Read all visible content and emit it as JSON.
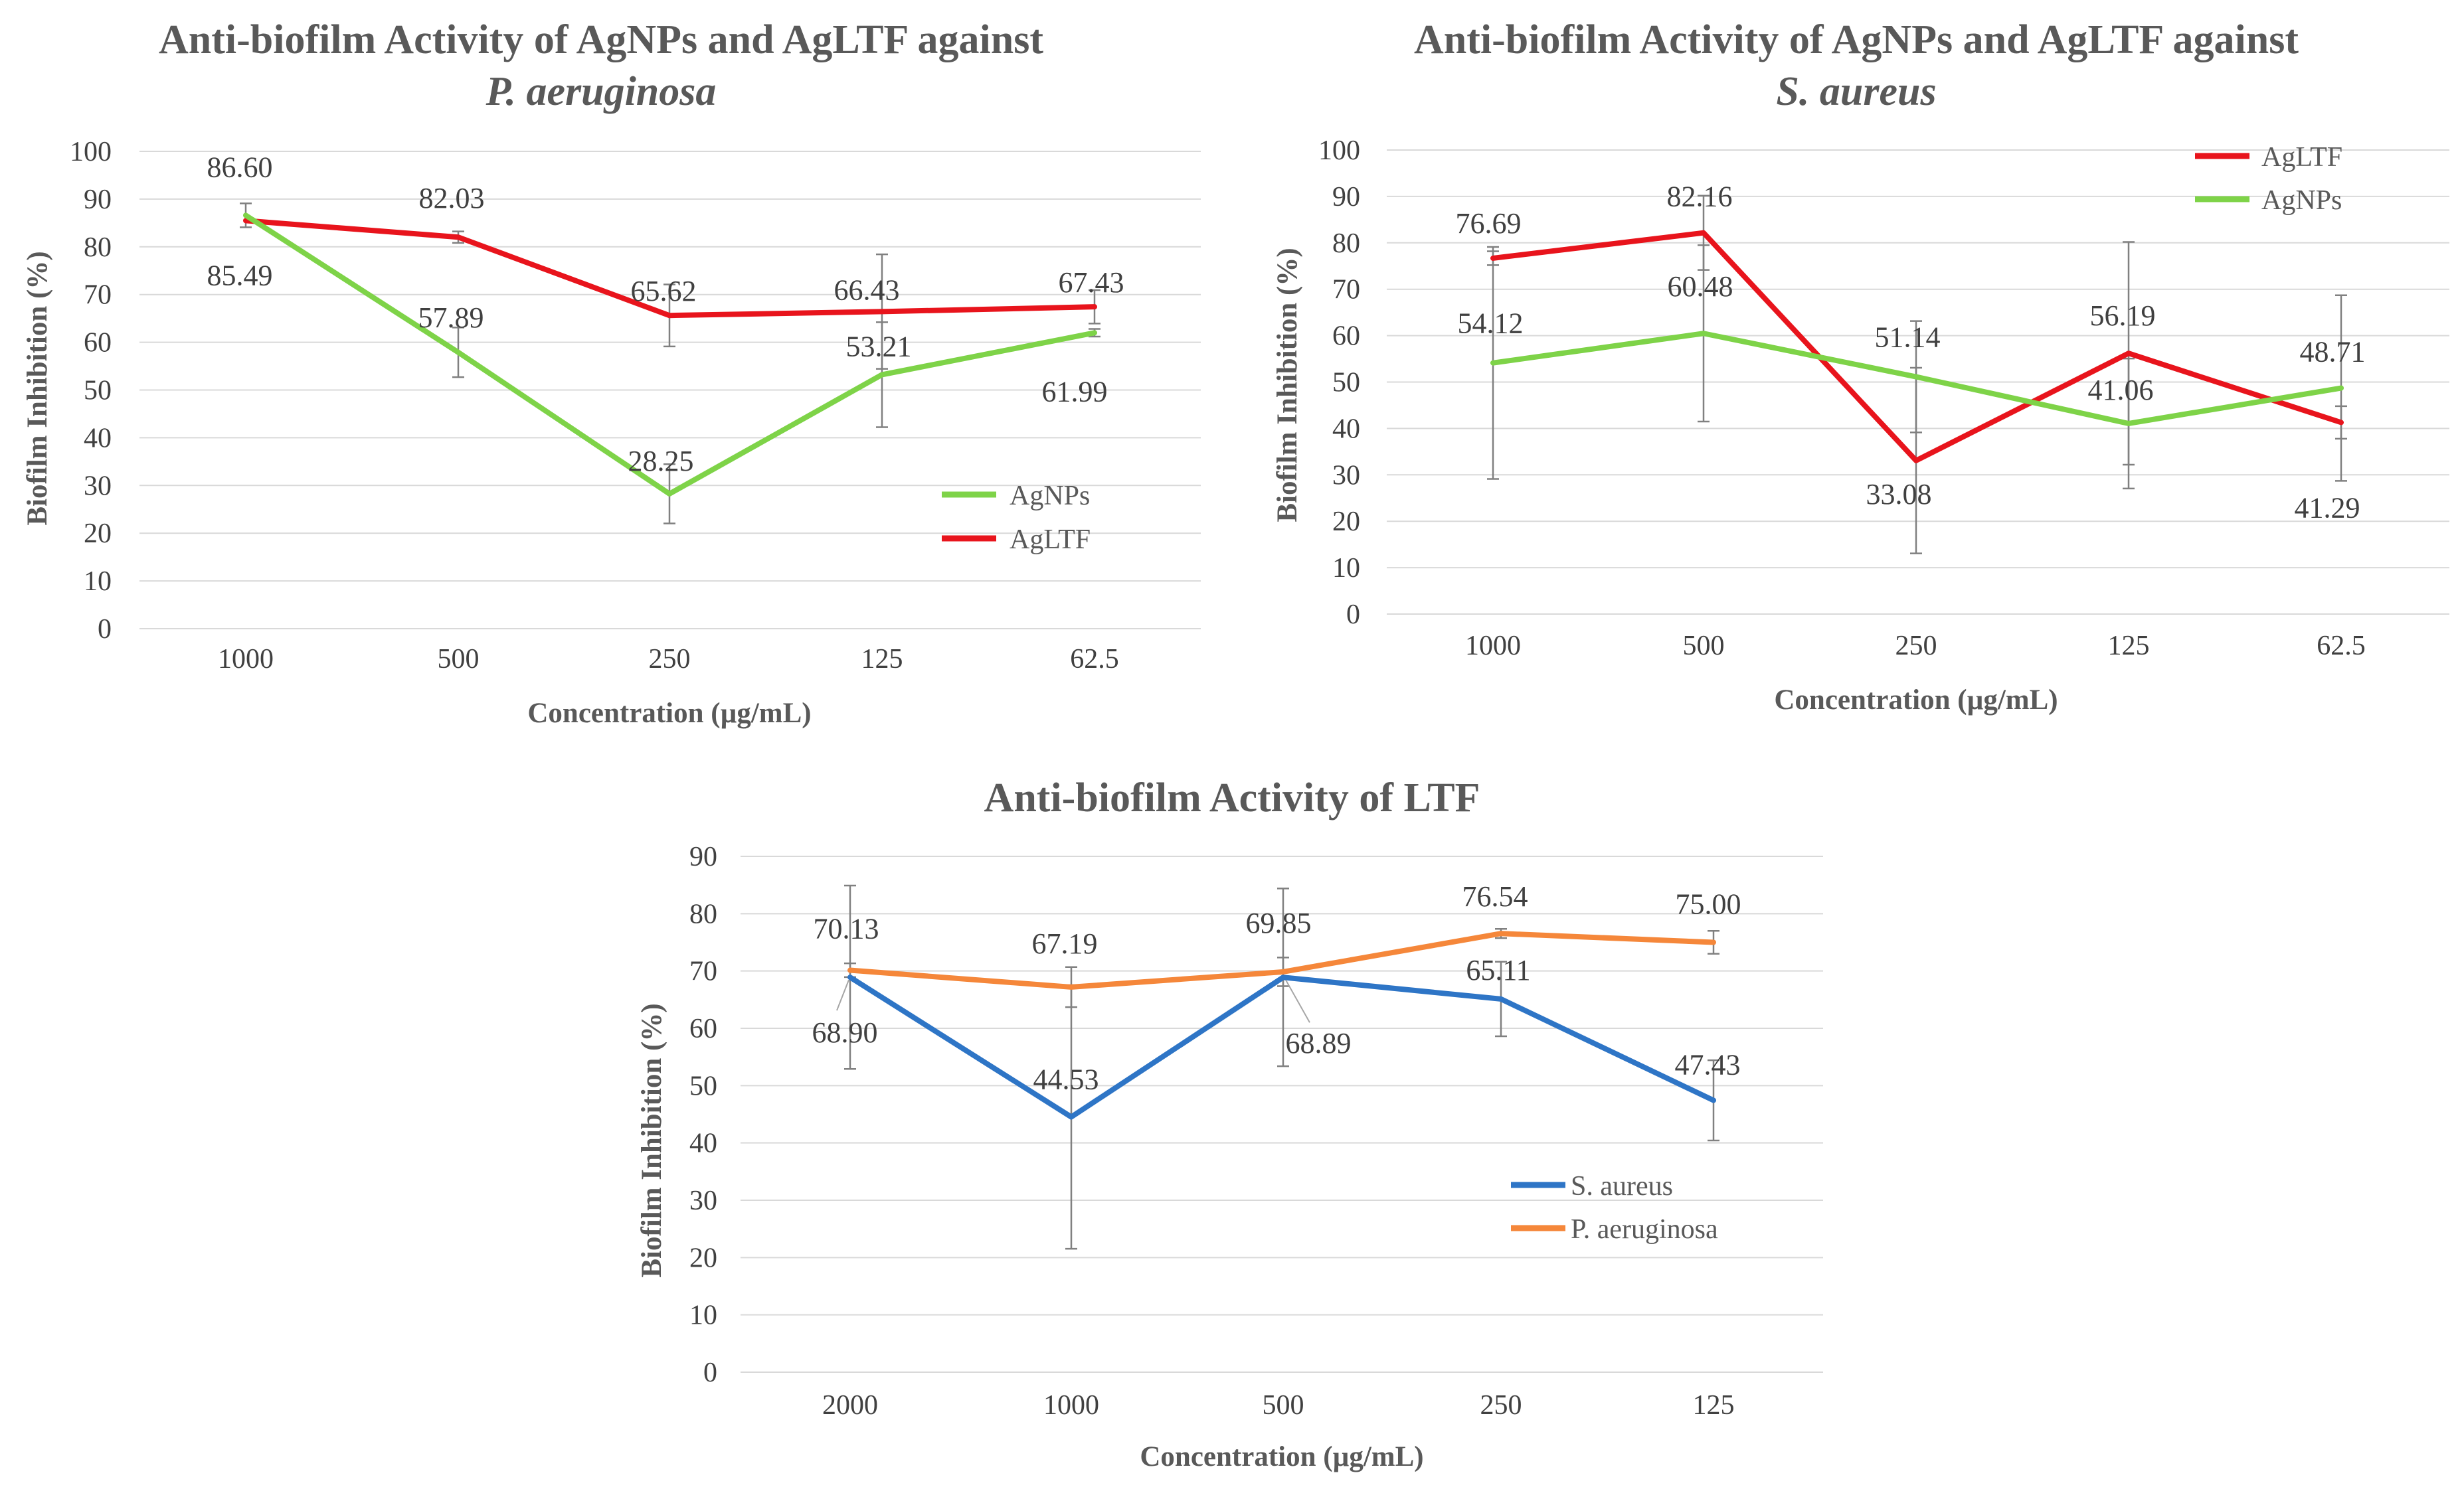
{
  "chart_data": [
    {
      "type": "line",
      "title": "Anti-biofilm Activity of AgNPs and AgLTF against",
      "title_organism": "P. aeruginosa",
      "xlabel": "Concentration (µg/mL)",
      "ylabel": "Biofilm Inhibition (%)",
      "categories": [
        "1000",
        "500",
        "250",
        "125",
        "62.5"
      ],
      "ylim": [
        0,
        100
      ],
      "yticks": [
        0,
        10,
        20,
        30,
        40,
        50,
        60,
        70,
        80,
        90,
        100
      ],
      "grid": true,
      "legend_position": "bottom-right",
      "legend": [
        "AgNPs",
        "AgLTF"
      ],
      "series": [
        {
          "name": "AgLTF",
          "color": "#e8141c",
          "values": [
            85.49,
            82.03,
            65.62,
            66.43,
            67.43
          ],
          "labels": [
            "85.49",
            "82.03",
            "65.62",
            "66.43",
            "67.43"
          ],
          "error": [
            0,
            1.2,
            6.5,
            12,
            3.5
          ]
        },
        {
          "name": "AgNPs",
          "color": "#7ed348",
          "values": [
            86.6,
            57.89,
            28.25,
            53.21,
            61.99
          ],
          "labels": [
            "86.60",
            "57.89",
            "28.25",
            "53.21",
            "61.99"
          ],
          "error": [
            2.5,
            5.2,
            6.2,
            11,
            0.8
          ]
        }
      ]
    },
    {
      "type": "line",
      "title": "Anti-biofilm Activity of AgNPs and AgLTF against",
      "title_organism": "S. aureus",
      "xlabel": "Concentration (µg/mL)",
      "ylabel": "Biofilm Inhibition (%)",
      "categories": [
        "1000",
        "500",
        "250",
        "125",
        "62.5"
      ],
      "ylim": [
        0,
        100
      ],
      "yticks": [
        0,
        10,
        20,
        30,
        40,
        50,
        60,
        70,
        80,
        90,
        100
      ],
      "grid": true,
      "legend_position": "top-right",
      "legend": [
        "AgLTF",
        "AgNPs"
      ],
      "series": [
        {
          "name": "AgLTF",
          "color": "#e8141c",
          "values": [
            76.69,
            82.16,
            33.08,
            56.19,
            41.29
          ],
          "labels": [
            "76.69",
            "82.16",
            "33.08",
            "56.19",
            "41.29"
          ],
          "error": [
            1.5,
            8,
            20,
            24,
            3.5
          ]
        },
        {
          "name": "AgNPs",
          "color": "#7ed348",
          "values": [
            54.12,
            60.48,
            51.14,
            41.06,
            48.71
          ],
          "labels": [
            "54.12",
            "60.48",
            "51.14",
            "41.06",
            "48.71"
          ],
          "error": [
            25,
            19,
            12,
            14,
            20
          ]
        }
      ]
    },
    {
      "type": "line",
      "title": "Anti-biofilm Activity of LTF",
      "xlabel": "Concentration (µg/mL)",
      "ylabel": "Biofilm Inhibition (%)",
      "categories": [
        "2000",
        "1000",
        "500",
        "250",
        "125"
      ],
      "ylim": [
        0,
        90
      ],
      "yticks": [
        0,
        10,
        20,
        30,
        40,
        50,
        60,
        70,
        80,
        90
      ],
      "grid": true,
      "legend_position": "bottom-right",
      "legend": [
        "S. aureus",
        "P. aeruginosa"
      ],
      "series": [
        {
          "name": "S. aureus",
          "color": "#2e75c6",
          "values": [
            68.9,
            44.53,
            68.89,
            65.11,
            47.43
          ],
          "labels": [
            "68.90",
            "44.53",
            "68.89",
            "65.11",
            "47.43"
          ],
          "error": [
            16,
            23,
            15.5,
            6.5,
            7
          ]
        },
        {
          "name": "P. aeruginosa",
          "color": "#f5873a",
          "values": [
            70.13,
            67.19,
            69.85,
            76.54,
            75.0
          ],
          "labels": [
            "70.13",
            "67.19",
            "69.85",
            "76.54",
            "75.00"
          ],
          "error": [
            1.2,
            3.5,
            2.5,
            0.8,
            2
          ]
        }
      ]
    }
  ]
}
